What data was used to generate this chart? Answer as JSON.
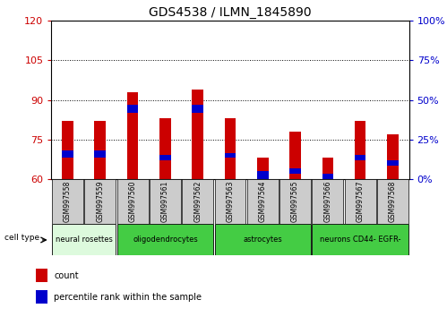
{
  "title": "GDS4538 / ILMN_1845890",
  "samples": [
    "GSM997558",
    "GSM997559",
    "GSM997560",
    "GSM997561",
    "GSM997562",
    "GSM997563",
    "GSM997564",
    "GSM997565",
    "GSM997566",
    "GSM997567",
    "GSM997568"
  ],
  "red_values": [
    82,
    82,
    93,
    83,
    94,
    83,
    68,
    78,
    68,
    82,
    77
  ],
  "blue_base": [
    68,
    68,
    85,
    67,
    85,
    68,
    60,
    62,
    60,
    67,
    65
  ],
  "blue_height": [
    3,
    3,
    3,
    2,
    3,
    2,
    3,
    2,
    2,
    2,
    2
  ],
  "ymin": 60,
  "ymax": 120,
  "yticks_left": [
    60,
    75,
    90,
    105,
    120
  ],
  "yticks_right_vals": [
    0,
    25,
    50,
    75,
    100
  ],
  "yticks_right_pos": [
    60,
    75,
    90,
    105,
    120
  ],
  "bar_width": 0.35,
  "red_color": "#cc0000",
  "blue_color": "#0000cc",
  "tick_label_color": "#cc0000",
  "right_tick_color": "#0000cc",
  "bar_area_facecolor": "#ffffff",
  "xlabel_area_color": "#cccccc",
  "groups": [
    {
      "label": "neural rosettes",
      "start": 0,
      "end": 2,
      "color": "#ddfadd"
    },
    {
      "label": "oligodendrocytes",
      "start": 2,
      "end": 5,
      "color": "#44cc44"
    },
    {
      "label": "astrocytes",
      "start": 5,
      "end": 8,
      "color": "#44cc44"
    },
    {
      "label": "neurons CD44- EGFR-",
      "start": 8,
      "end": 11,
      "color": "#44cc44"
    }
  ]
}
